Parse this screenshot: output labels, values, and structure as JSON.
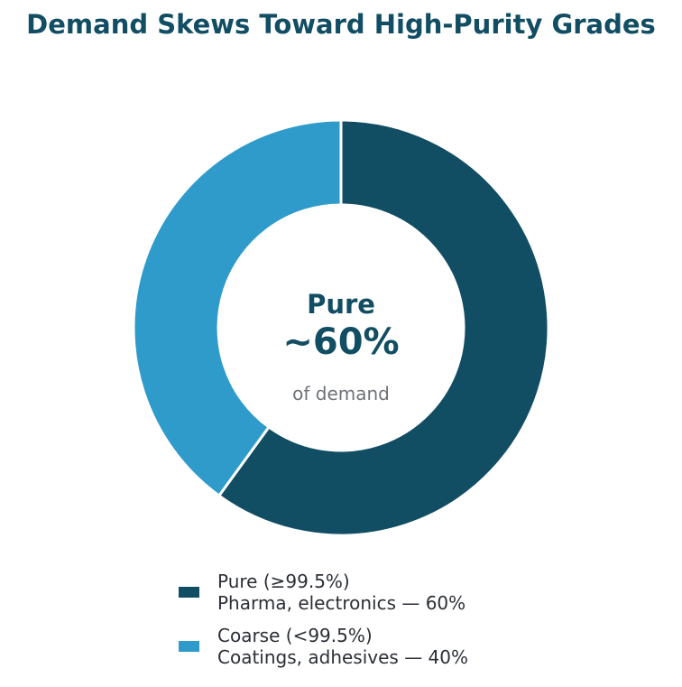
{
  "chart_data": {
    "type": "pie",
    "donut": true,
    "title": "Demand Skews Toward High-Purity Grades",
    "series": [
      {
        "name": "Pure (≥99.5%)",
        "value": 60,
        "color": "#114d63"
      },
      {
        "name": "Coarse (<99.5%)",
        "value": 40,
        "color": "#2e9bcb"
      }
    ],
    "center": {
      "label": "Pure",
      "value": "~60%",
      "sublabel": "of demand"
    },
    "legend": {
      "placement": "bottom",
      "items": [
        {
          "line1": "Pure (≥99.5%)",
          "line2": "Pharma, electronics  —  60%",
          "color": "#114d63"
        },
        {
          "line1": "Coarse (<99.5%)",
          "line2": "Coatings, adhesives  —  40%",
          "color": "#2e9bcb"
        }
      ]
    }
  }
}
